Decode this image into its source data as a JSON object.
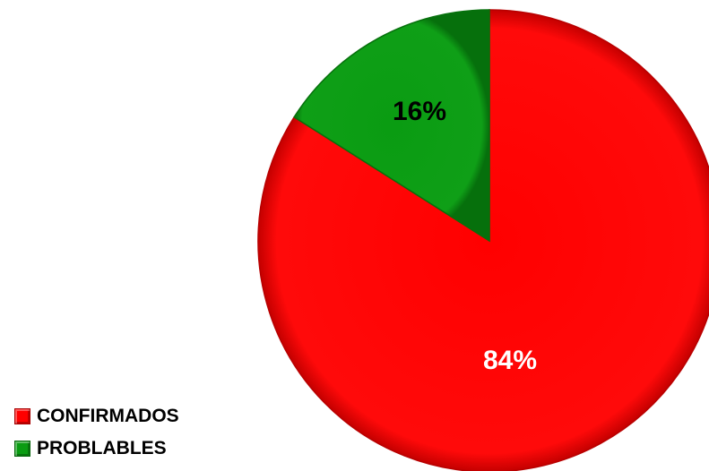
{
  "chart_data": {
    "type": "pie",
    "categories": [
      "CONFIRMADOS",
      "PROBLABLES"
    ],
    "values": [
      84,
      16
    ],
    "labels": [
      "84%",
      "16%"
    ],
    "colors": [
      "#ff0000",
      "#0a9c12"
    ],
    "label_colors": [
      "#ffffff",
      "#000000"
    ],
    "start_angle": "12 o'clock",
    "direction": "clockwise",
    "legend_position": "bottom-left"
  }
}
